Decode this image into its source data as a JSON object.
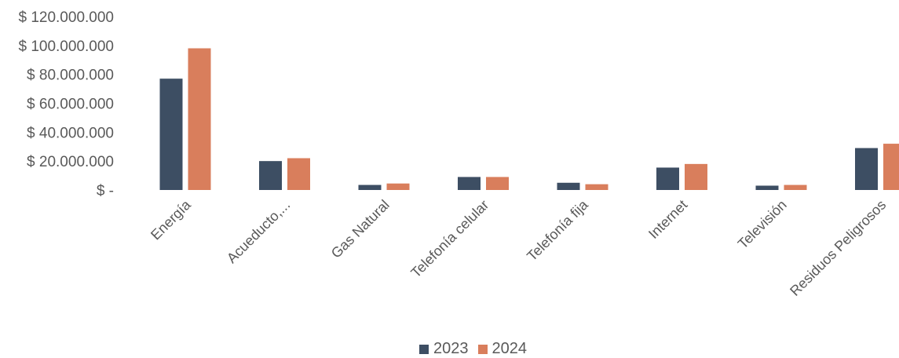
{
  "chart_data": {
    "type": "bar",
    "categories": [
      "Energía",
      "Acueducto,...",
      "Gas Natural",
      "Telefonía celular",
      "Telefonía fija",
      "Internet",
      "Televisión",
      "Residuos Peligrosos"
    ],
    "series": [
      {
        "name": "2023",
        "color": "#3d4e63",
        "values": [
          77000000,
          20000000,
          3500000,
          9000000,
          5000000,
          15500000,
          3000000,
          29000000
        ]
      },
      {
        "name": "2024",
        "color": "#d97e5c",
        "values": [
          98000000,
          22000000,
          4500000,
          9000000,
          4000000,
          18000000,
          3500000,
          32000000
        ]
      }
    ],
    "ylim": [
      0,
      120000000
    ],
    "ytick_values": [
      0,
      20000000,
      40000000,
      60000000,
      80000000,
      100000000,
      120000000
    ],
    "ytick_labels": [
      "$ -",
      "$ 20.000.000",
      "$ 40.000.000",
      "$ 60.000.000",
      "$ 80.000.000",
      "$ 100.000.000",
      "$ 120.000.000"
    ],
    "grid": false,
    "legend_position": "bottom"
  }
}
